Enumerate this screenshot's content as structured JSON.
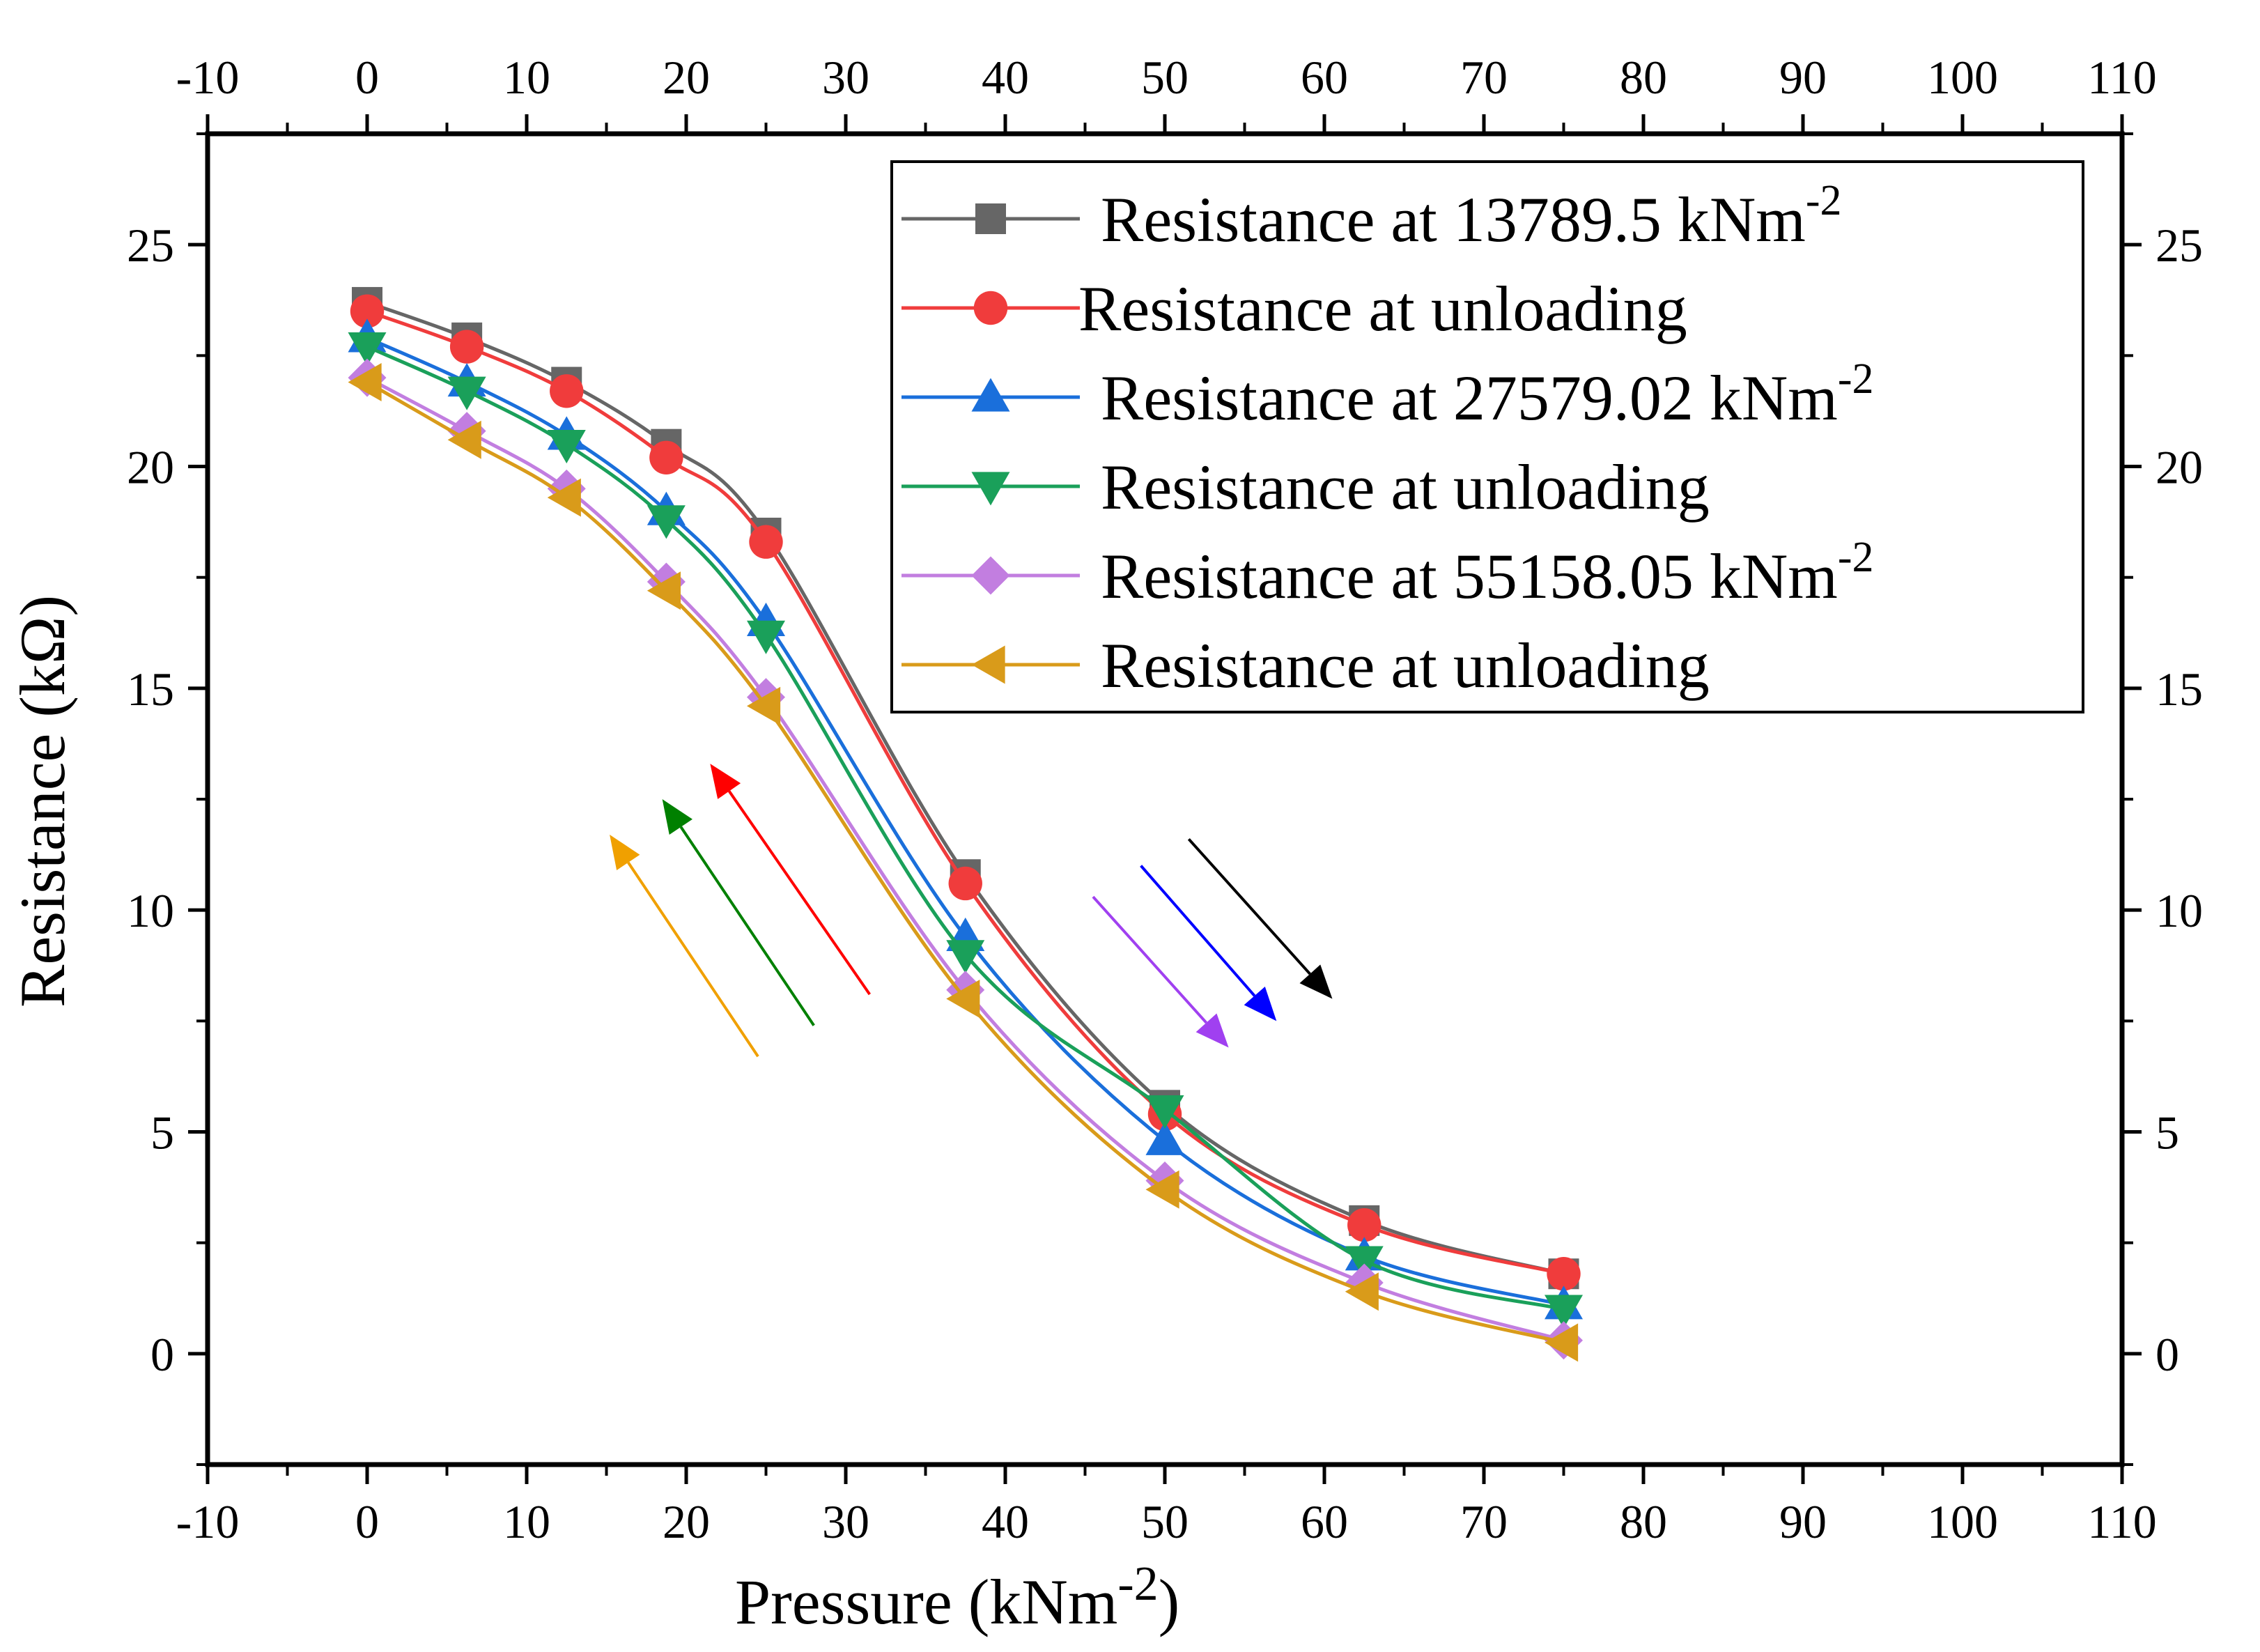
{
  "chart_data": {
    "type": "line",
    "title": "",
    "xlabel": "Pressure (kNm",
    "xlabel_sup": "-2",
    "xlabel_end": ")",
    "ylabel": "Resistance (kΩ)",
    "xlim": [
      -10,
      110
    ],
    "ylim": [
      -2.5,
      27.5
    ],
    "x_ticks": [
      "-10",
      "0",
      "10",
      "20",
      "30",
      "40",
      "50",
      "60",
      "70",
      "80",
      "90",
      "100",
      "110"
    ],
    "y_ticks": [
      "0",
      "5",
      "10",
      "15",
      "20",
      "25"
    ],
    "x": [
      0,
      6.25,
      12.5,
      18.75,
      25,
      37.5,
      50,
      62.5,
      75
    ],
    "series": [
      {
        "name": "Resistance at 13789.5 kNm",
        "sup": "-2",
        "marker": "square",
        "color": "#666666",
        "values": [
          23.7,
          22.9,
          21.9,
          20.5,
          18.5,
          10.8,
          5.6,
          3.0,
          1.8
        ]
      },
      {
        "name": "Resistance at unloading",
        "sup": "",
        "marker": "circle",
        "color": "#f03c3c",
        "values": [
          23.5,
          22.7,
          21.7,
          20.2,
          18.3,
          10.6,
          5.4,
          2.9,
          1.8
        ]
      },
      {
        "name": "Resistance at 27579.02 kNm",
        "sup": "-2",
        "marker": "triangle-up",
        "color": "#1a6fdb",
        "values": [
          22.9,
          21.9,
          20.7,
          19.0,
          16.5,
          9.4,
          4.8,
          2.2,
          1.1
        ]
      },
      {
        "name": "Resistance at unloading",
        "sup": "",
        "marker": "triangle-down",
        "color": "#1aa05a",
        "values": [
          22.7,
          21.7,
          20.5,
          18.8,
          16.2,
          9.0,
          5.5,
          2.1,
          1.0
        ]
      },
      {
        "name": "Resistance at 55158.05 kNm",
        "sup": "-2",
        "marker": "diamond",
        "color": "#c27ee0",
        "values": [
          22.0,
          20.8,
          19.5,
          17.4,
          14.8,
          8.2,
          3.9,
          1.6,
          0.3
        ]
      },
      {
        "name": "Resistance at unloading",
        "sup": "",
        "marker": "triangle-left",
        "color": "#d99b1a",
        "values": [
          21.9,
          20.6,
          19.3,
          17.2,
          14.6,
          8.0,
          3.7,
          1.4,
          0.25
        ]
      }
    ],
    "legend": "top-right",
    "grid": false,
    "annotations": {
      "arrows_down": [
        {
          "color": "#000000",
          "from": [
            51.5,
            11.6
          ],
          "to": [
            60.5,
            8.0
          ]
        },
        {
          "color": "#0000ff",
          "from": [
            48.5,
            11.0
          ],
          "to": [
            57.0,
            7.5
          ]
        },
        {
          "color": "#a040f0",
          "from": [
            45.5,
            10.3
          ],
          "to": [
            54.0,
            6.9
          ]
        }
      ],
      "arrows_up": [
        {
          "color": "#f0a000",
          "from": [
            24.5,
            6.7
          ],
          "to": [
            15.2,
            11.7
          ]
        },
        {
          "color": "#008000",
          "from": [
            28.0,
            7.4
          ],
          "to": [
            18.5,
            12.5
          ]
        },
        {
          "color": "#ff0000",
          "from": [
            31.5,
            8.1
          ],
          "to": [
            21.5,
            13.3
          ]
        }
      ]
    }
  }
}
